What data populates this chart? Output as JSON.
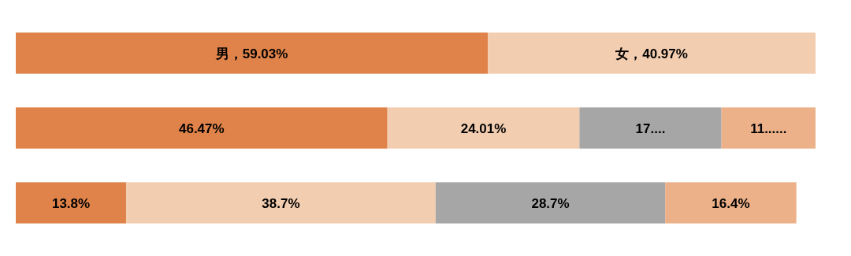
{
  "chart_data": {
    "type": "bar",
    "orientation": "horizontal",
    "stacked": true,
    "categories": [
      null,
      null,
      null
    ],
    "series": [
      {
        "color": "#e0834a",
        "values": [
          59.03,
          46.47,
          13.8
        ],
        "value_labels": [
          "男，59.03%",
          "46.47%",
          "13.8%"
        ]
      },
      {
        "color": "#f2cdb0",
        "values": [
          40.97,
          24.01,
          38.7
        ],
        "value_labels": [
          "女，40.97%",
          "24.01%",
          "38.7%"
        ]
      },
      {
        "color": "#a6a6a6",
        "values": [
          null,
          17.76,
          28.7
        ],
        "value_labels": [
          null,
          "17....",
          "28.7%"
        ]
      },
      {
        "color": "#ecb189",
        "values": [
          null,
          11.76,
          16.4
        ],
        "value_labels": [
          null,
          "11......",
          "16.4%"
        ]
      }
    ]
  }
}
